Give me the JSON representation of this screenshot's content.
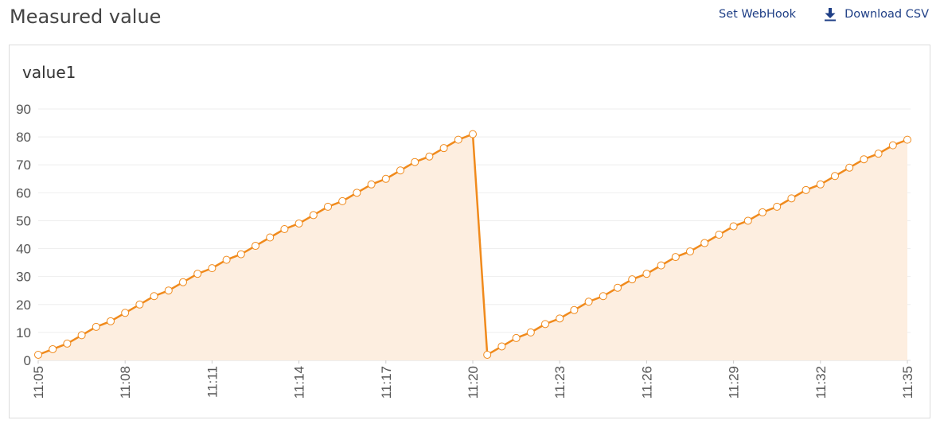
{
  "page": {
    "title": "Measured value"
  },
  "header": {
    "webhook_label": "Set WebHook",
    "download_label": "Download CSV",
    "download_icon": "download-icon"
  },
  "colors": {
    "line": "#f08a1c",
    "area": "#fdeee0",
    "marker_fill": "#ffffff",
    "grid": "#eeeeee",
    "link": "#1f3f86"
  },
  "chart_data": {
    "type": "area",
    "title": "value1",
    "xlabel": "",
    "ylabel": "",
    "ylim": [
      0,
      90
    ],
    "yticks": [
      0,
      10,
      20,
      30,
      40,
      50,
      60,
      70,
      80,
      90
    ],
    "xlim": [
      "11:05",
      "11:35"
    ],
    "xticks": [
      "11:05",
      "11:08",
      "11:11",
      "11:14",
      "11:17",
      "11:20",
      "11:23",
      "11:26",
      "11:29",
      "11:32",
      "11:35"
    ],
    "grid": true,
    "markers": true,
    "series": [
      {
        "x": [
          "11:05:00",
          "11:05:30",
          "11:06:00",
          "11:06:30",
          "11:07:00",
          "11:07:30",
          "11:08:00",
          "11:08:30",
          "11:09:00",
          "11:09:30",
          "11:10:00",
          "11:10:30",
          "11:11:00",
          "11:11:30",
          "11:12:00",
          "11:12:30",
          "11:13:00",
          "11:13:30",
          "11:14:00",
          "11:14:30",
          "11:15:00",
          "11:15:30",
          "11:16:00",
          "11:16:30",
          "11:17:00",
          "11:17:30",
          "11:18:00",
          "11:18:30",
          "11:19:00",
          "11:19:30",
          "11:20:00",
          "11:20:30",
          "11:21:00",
          "11:21:30",
          "11:22:00",
          "11:22:30",
          "11:23:00",
          "11:23:30",
          "11:24:00",
          "11:24:30",
          "11:25:00",
          "11:25:30",
          "11:26:00",
          "11:26:30",
          "11:27:00",
          "11:27:30",
          "11:28:00",
          "11:28:30",
          "11:29:00",
          "11:29:30",
          "11:30:00",
          "11:30:30",
          "11:31:00",
          "11:31:30",
          "11:32:00",
          "11:32:30",
          "11:33:00",
          "11:33:30",
          "11:34:00",
          "11:34:30",
          "11:35:00"
        ],
        "values": [
          2,
          4,
          6,
          9,
          12,
          14,
          17,
          20,
          23,
          25,
          28,
          31,
          33,
          36,
          38,
          41,
          44,
          47,
          49,
          52,
          55,
          57,
          60,
          63,
          65,
          68,
          71,
          73,
          76,
          79,
          81,
          2,
          5,
          8,
          10,
          13,
          15,
          18,
          21,
          23,
          26,
          29,
          31,
          34,
          37,
          39,
          42,
          45,
          48,
          50,
          53,
          55,
          58,
          61,
          63,
          66,
          69,
          72,
          74,
          77,
          79
        ]
      }
    ]
  }
}
